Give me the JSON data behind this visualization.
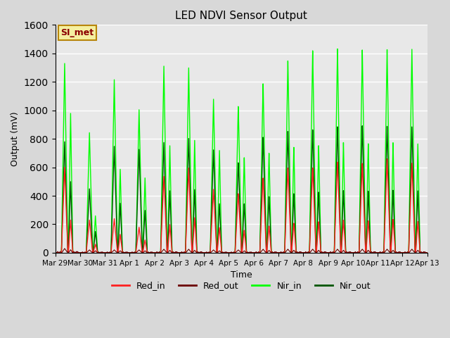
{
  "title": "LED NDVI Sensor Output",
  "xlabel": "Time",
  "ylabel": "Output (mV)",
  "ylim": [
    0,
    1600
  ],
  "yticks": [
    0,
    200,
    400,
    600,
    800,
    1000,
    1200,
    1400,
    1600
  ],
  "background_color": "#d8d8d8",
  "plot_bg_color": "#e8e8e8",
  "grid_color": "white",
  "annotation_text": "SI_met",
  "annotation_color": "#8b0000",
  "annotation_bg": "#f5f0a0",
  "annotation_border": "#b8860b",
  "series": {
    "Red_in": {
      "color": "#ff2020",
      "lw": 1.0
    },
    "Red_out": {
      "color": "#6b0000",
      "lw": 0.8
    },
    "Nir_in": {
      "color": "#00ff00",
      "lw": 1.0
    },
    "Nir_out": {
      "color": "#005500",
      "lw": 1.0
    }
  },
  "day_labels": [
    "Mar 29",
    "Mar 30",
    "Mar 31",
    "Apr 1",
    "Apr 2",
    "Apr 3",
    "Apr 4",
    "Apr 5",
    "Apr 6",
    "Apr 7",
    "Apr 8",
    "Apr 9",
    "Apr 10",
    "Apr 11",
    "Apr 12",
    "Apr 13"
  ],
  "peaks_per_day": [
    {
      "red_in": 600,
      "red_out": 30,
      "nir_in": 1330,
      "nir_out": 780,
      "p2_ri": 230,
      "p2_ni": 980,
      "p2_no": 500
    },
    {
      "red_in": 230,
      "red_out": 20,
      "nir_in": 845,
      "nir_out": 450,
      "p2_ri": 60,
      "p2_ni": 260,
      "p2_no": 150
    },
    {
      "red_in": 240,
      "red_out": 20,
      "nir_in": 1220,
      "nir_out": 750,
      "p2_ri": 130,
      "p2_ni": 590,
      "p2_no": 350
    },
    {
      "red_in": 180,
      "red_out": 20,
      "nir_in": 1010,
      "nir_out": 730,
      "p2_ri": 90,
      "p2_ni": 530,
      "p2_no": 300
    },
    {
      "red_in": 540,
      "red_out": 25,
      "nir_in": 1320,
      "nir_out": 780,
      "p2_ri": 200,
      "p2_ni": 760,
      "p2_no": 440
    },
    {
      "red_in": 600,
      "red_out": 25,
      "nir_in": 1310,
      "nir_out": 810,
      "p2_ri": 250,
      "p2_ni": 800,
      "p2_no": 450
    },
    {
      "red_in": 450,
      "red_out": 20,
      "nir_in": 1090,
      "nir_out": 730,
      "p2_ri": 180,
      "p2_ni": 730,
      "p2_no": 350
    },
    {
      "red_in": 420,
      "red_out": 20,
      "nir_in": 1040,
      "nir_out": 640,
      "p2_ri": 160,
      "p2_ni": 680,
      "p2_no": 350
    },
    {
      "red_in": 530,
      "red_out": 25,
      "nir_in": 1200,
      "nir_out": 820,
      "p2_ri": 190,
      "p2_ni": 710,
      "p2_no": 400
    },
    {
      "red_in": 600,
      "red_out": 25,
      "nir_in": 1360,
      "nir_out": 860,
      "p2_ri": 210,
      "p2_ni": 750,
      "p2_no": 420
    },
    {
      "red_in": 600,
      "red_out": 25,
      "nir_in": 1430,
      "nir_out": 870,
      "p2_ri": 220,
      "p2_ni": 760,
      "p2_no": 430
    },
    {
      "red_in": 640,
      "red_out": 25,
      "nir_in": 1440,
      "nir_out": 890,
      "p2_ri": 230,
      "p2_ni": 780,
      "p2_no": 440
    },
    {
      "red_in": 630,
      "red_out": 25,
      "nir_in": 1430,
      "nir_out": 895,
      "p2_ri": 225,
      "p2_ni": 770,
      "p2_no": 435
    },
    {
      "red_in": 660,
      "red_out": 25,
      "nir_in": 1430,
      "nir_out": 890,
      "p2_ri": 235,
      "p2_ni": 775,
      "p2_no": 440
    },
    {
      "red_in": 630,
      "red_out": 25,
      "nir_in": 1430,
      "nir_out": 885,
      "p2_ri": 220,
      "p2_ni": 765,
      "p2_no": 435
    }
  ]
}
